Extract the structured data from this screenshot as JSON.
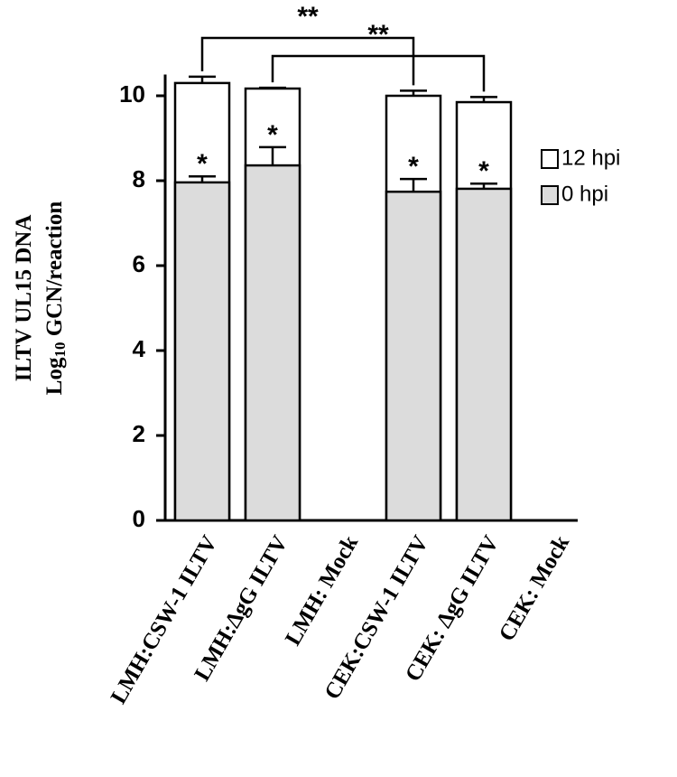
{
  "chart_data": {
    "type": "bar",
    "ylabel": [
      "ILTV UL15 DNA",
      {
        "text": "Log",
        "subscript": "10",
        "rest": " GCN/reaction"
      }
    ],
    "categories": [
      "LMH:CSW-1 ILTV",
      "LMH:ΔgG ILTV",
      "LMH: Mock",
      "CEK:CSW-1 ILTV",
      "CEK: ΔgG ILTV",
      "CEK: Mock"
    ],
    "series": [
      {
        "name": "12 hpi",
        "color": "#ffffff",
        "values": [
          10.3,
          10.17,
          0,
          10.0,
          9.85,
          0
        ],
        "errors": [
          0.15,
          0.02,
          0,
          0.12,
          0.12,
          0
        ]
      },
      {
        "name": "0 hpi",
        "color": "#dcdcdc",
        "values": [
          7.96,
          8.36,
          0,
          7.74,
          7.81,
          0
        ],
        "errors": [
          0.14,
          0.43,
          0,
          0.3,
          0.12,
          0
        ],
        "markers": [
          "*",
          "*",
          null,
          "*",
          "*",
          null
        ]
      }
    ],
    "brackets": [
      {
        "from": "LMH:CSW-1 ILTV",
        "to": "CEK:CSW-1 ILTV",
        "label": "**"
      },
      {
        "from": "LMH:ΔgG ILTV",
        "to": "CEK: ΔgG ILTV",
        "label": "**"
      }
    ],
    "ylim": [
      0,
      10.5
    ],
    "yticks": [
      0,
      2,
      4,
      6,
      8,
      10
    ],
    "grid": false,
    "legend": "right"
  }
}
